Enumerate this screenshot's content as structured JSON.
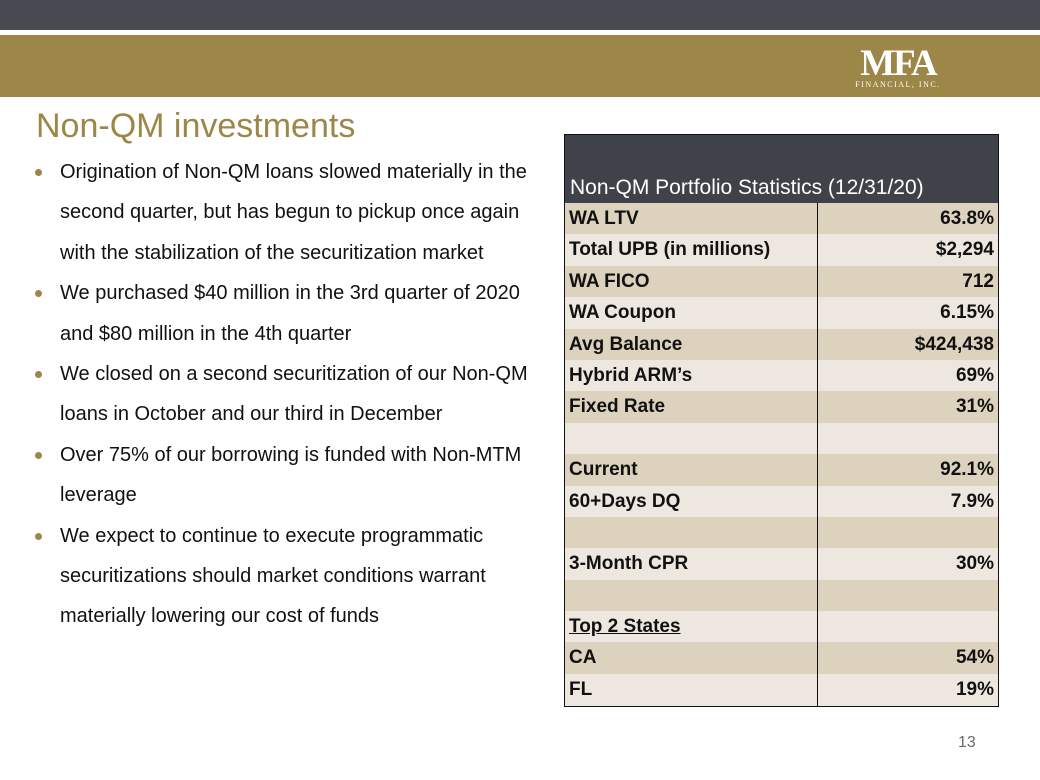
{
  "colors": {
    "dark_bar": "#484c52",
    "gold": "#9c8648",
    "table_header": "#3f4349",
    "row_dark": "#ddd2bd",
    "row_light": "#ede7df"
  },
  "logo": {
    "main": "MFA",
    "sub": "FINANCIAL, INC."
  },
  "title": "Non-QM investments",
  "bullets": [
    "Origination of Non-QM loans slowed materially in the second quarter, but has begun to pickup once again with the stabilization of the securitization market",
    "We purchased $40 million in the 3rd quarter of 2020 and $80 million in the 4th quarter",
    "We closed on a second securitization of our Non-QM loans in October and our third in December",
    "Over 75% of our borrowing is funded with Non-MTM leverage",
    "We expect to continue to execute programmatic securitizations should market conditions warrant materially lowering our cost of funds"
  ],
  "stats_table": {
    "title": "Non-QM Portfolio Statistics (12/31/20)",
    "rows": [
      {
        "label": "WA LTV",
        "value": "63.8%"
      },
      {
        "label": "Total UPB (in millions)",
        "value": "$2,294"
      },
      {
        "label": "WA FICO",
        "value": "712"
      },
      {
        "label": "WA Coupon",
        "value": "6.15%"
      },
      {
        "label": "Avg Balance",
        "value": "$424,438"
      },
      {
        "label": "Hybrid ARM’s",
        "value": "69%"
      },
      {
        "label": "Fixed Rate",
        "value": "31%"
      },
      {
        "label": "",
        "value": ""
      },
      {
        "label": "Current",
        "value": "92.1%"
      },
      {
        "label": "60+Days DQ",
        "value": "7.9%"
      },
      {
        "label": "",
        "value": ""
      },
      {
        "label": "3-Month CPR",
        "value": "30%"
      },
      {
        "label": "",
        "value": ""
      },
      {
        "label": "Top 2 States",
        "value": ""
      },
      {
        "label": "CA",
        "value": "54%"
      },
      {
        "label": "FL",
        "value": "19%"
      }
    ]
  },
  "page_number": "13"
}
